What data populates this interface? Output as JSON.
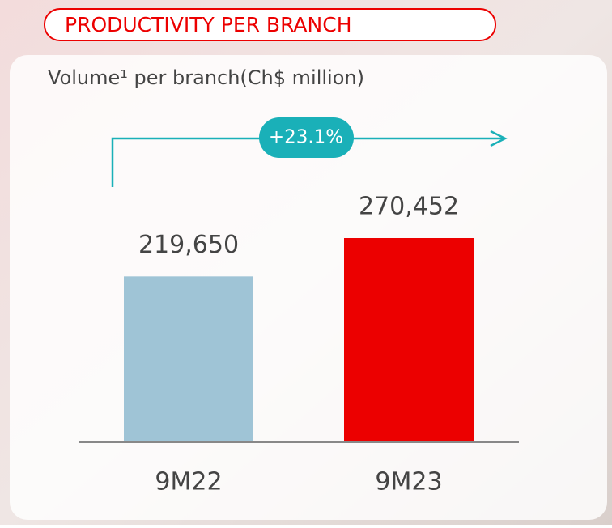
{
  "chart_data": {
    "type": "bar",
    "title": "PRODUCTIVITY PER BRANCH",
    "subtitle": "Volume¹ per branch(Ch$ million)",
    "annotation": "+23.1%",
    "categories": [
      "9M22",
      "9M23"
    ],
    "values": [
      219650,
      270452
    ],
    "value_labels": [
      "219,650",
      "270,452"
    ],
    "colors": [
      "#9fc4d6",
      "#ec0000"
    ]
  }
}
